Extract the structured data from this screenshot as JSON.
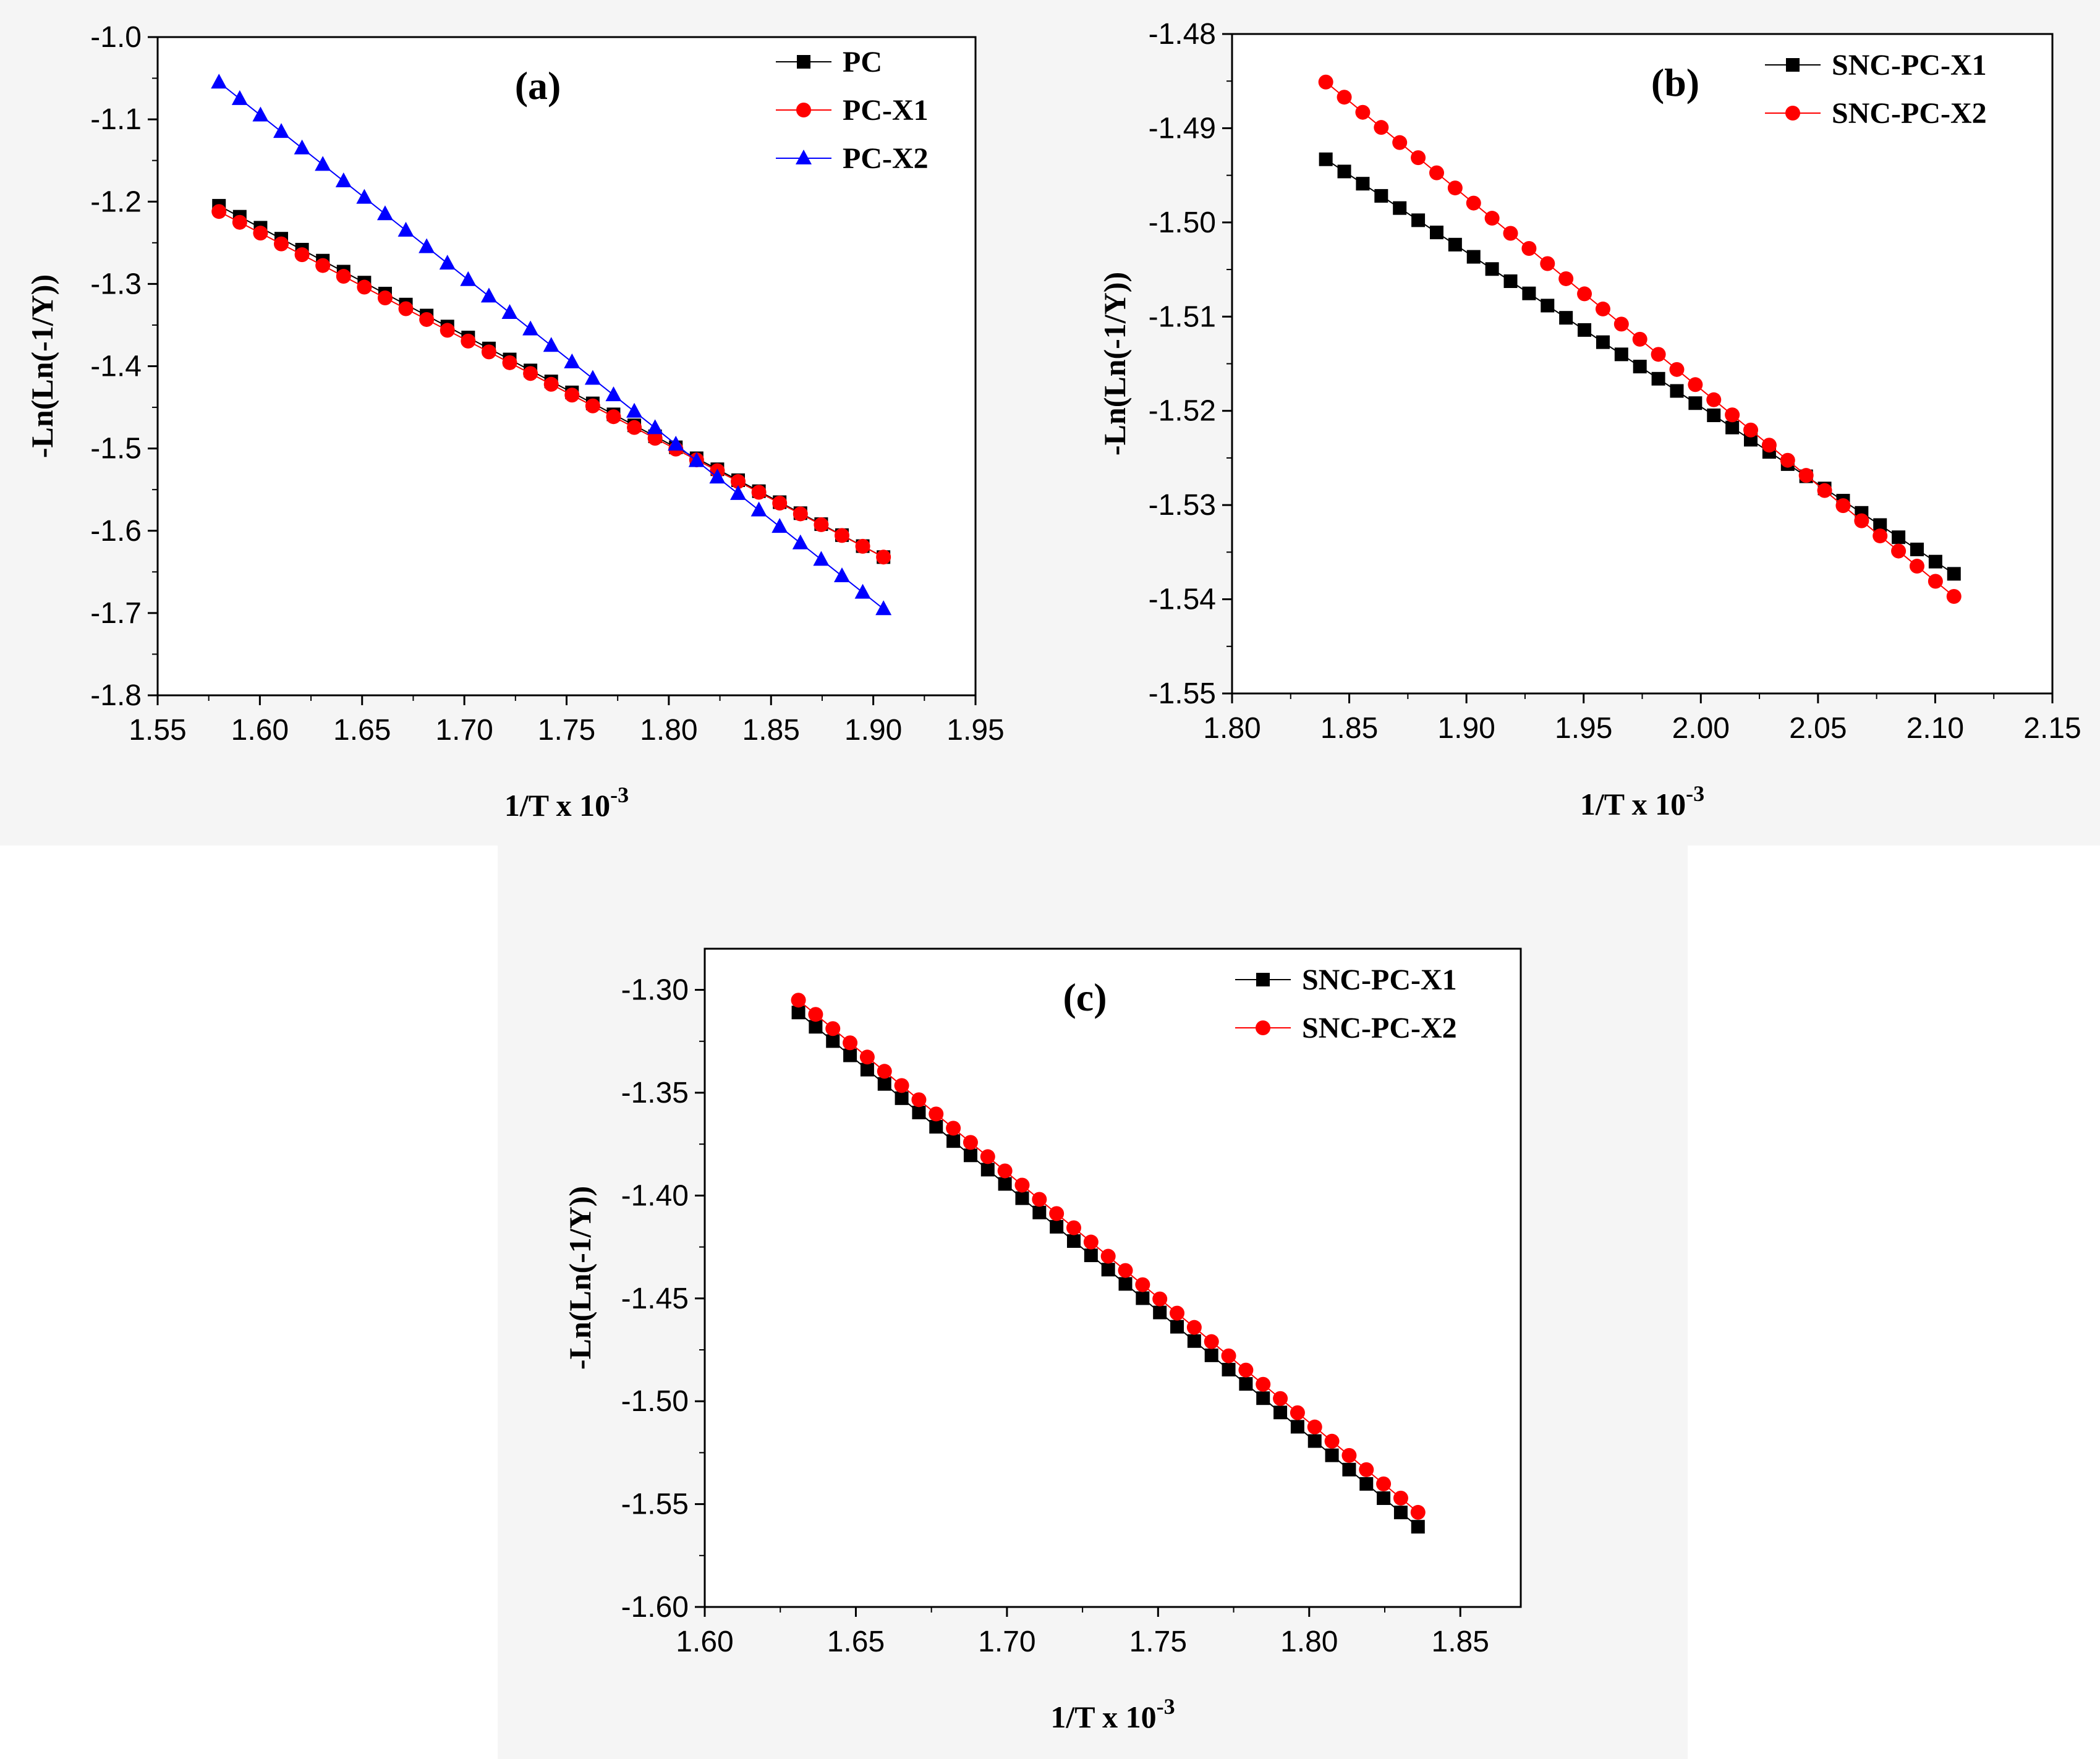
{
  "chart_data": [
    {
      "type": "scatter",
      "panel_label": "(a)",
      "xlabel": "1/T x 10",
      "xlabel_sup": "-3",
      "ylabel": "-Ln(Ln(-1/Y))",
      "xlim": [
        1.55,
        1.95
      ],
      "ylim": [
        -1.8,
        -1.0
      ],
      "xticks": [
        "1.55",
        "1.60",
        "1.65",
        "1.70",
        "1.75",
        "1.80",
        "1.85",
        "1.90",
        "1.95"
      ],
      "yticks": [
        "-1.0",
        "-1.1",
        "-1.2",
        "-1.3",
        "-1.4",
        "-1.5",
        "-1.6",
        "-1.7",
        "-1.8"
      ],
      "legend_position": "top-right",
      "series": [
        {
          "name": "PC",
          "marker": "square",
          "color": "#000000",
          "x_start": 1.58,
          "x_end": 1.905,
          "y_start": -1.205,
          "y_end": -1.632,
          "count": 33
        },
        {
          "name": "PC-X1",
          "marker": "circle",
          "color": "#ff0000",
          "x_start": 1.58,
          "x_end": 1.905,
          "y_start": -1.212,
          "y_end": -1.632,
          "count": 33
        },
        {
          "name": "PC-X2",
          "marker": "triangle",
          "color": "#0000ff",
          "x_start": 1.58,
          "x_end": 1.905,
          "y_start": -1.055,
          "y_end": -1.695,
          "count": 33
        }
      ]
    },
    {
      "type": "scatter",
      "panel_label": "(b)",
      "xlabel": "1/T x 10",
      "xlabel_sup": "-3",
      "ylabel": "-Ln(Ln(-1/Y))",
      "xlim": [
        1.8,
        2.15
      ],
      "ylim": [
        -1.55,
        -1.48
      ],
      "xticks": [
        "1.80",
        "1.85",
        "1.90",
        "1.95",
        "2.00",
        "2.05",
        "2.10",
        "2.15"
      ],
      "yticks": [
        "-1.48",
        "-1.49",
        "-1.50",
        "-1.51",
        "-1.52",
        "-1.53",
        "-1.54",
        "-1.55"
      ],
      "legend_position": "top-right",
      "series": [
        {
          "name": "SNC-PC-X1",
          "marker": "square",
          "color": "#000000",
          "x_start": 1.84,
          "x_end": 2.108,
          "y_start": -1.4933,
          "y_end": -1.5373,
          "count": 35
        },
        {
          "name": "SNC-PC-X2",
          "marker": "circle",
          "color": "#ff0000",
          "x_start": 1.84,
          "x_end": 2.108,
          "y_start": -1.4851,
          "y_end": -1.5397,
          "count": 35
        }
      ]
    },
    {
      "type": "scatter",
      "panel_label": "(c)",
      "xlabel": "1/T x 10",
      "xlabel_sup": "-3",
      "ylabel": "-Ln(Ln(-1/Y))",
      "xlim": [
        1.6,
        1.87
      ],
      "ylim": [
        -1.6,
        -1.28
      ],
      "xticks": [
        "1.60",
        "1.65",
        "1.70",
        "1.75",
        "1.80",
        "1.85"
      ],
      "yticks": [
        "-1.30",
        "-1.35",
        "-1.40",
        "-1.45",
        "-1.50",
        "-1.55",
        "-1.60"
      ],
      "legend_position": "top-right",
      "series": [
        {
          "name": "SNC-PC-X1",
          "marker": "square",
          "color": "#000000",
          "x_start": 1.631,
          "x_end": 1.836,
          "y_start": -1.311,
          "y_end": -1.561,
          "count": 37
        },
        {
          "name": "SNC-PC-X2",
          "marker": "circle",
          "color": "#ff0000",
          "x_start": 1.631,
          "x_end": 1.836,
          "y_start": -1.305,
          "y_end": -1.554,
          "count": 37
        }
      ]
    }
  ]
}
